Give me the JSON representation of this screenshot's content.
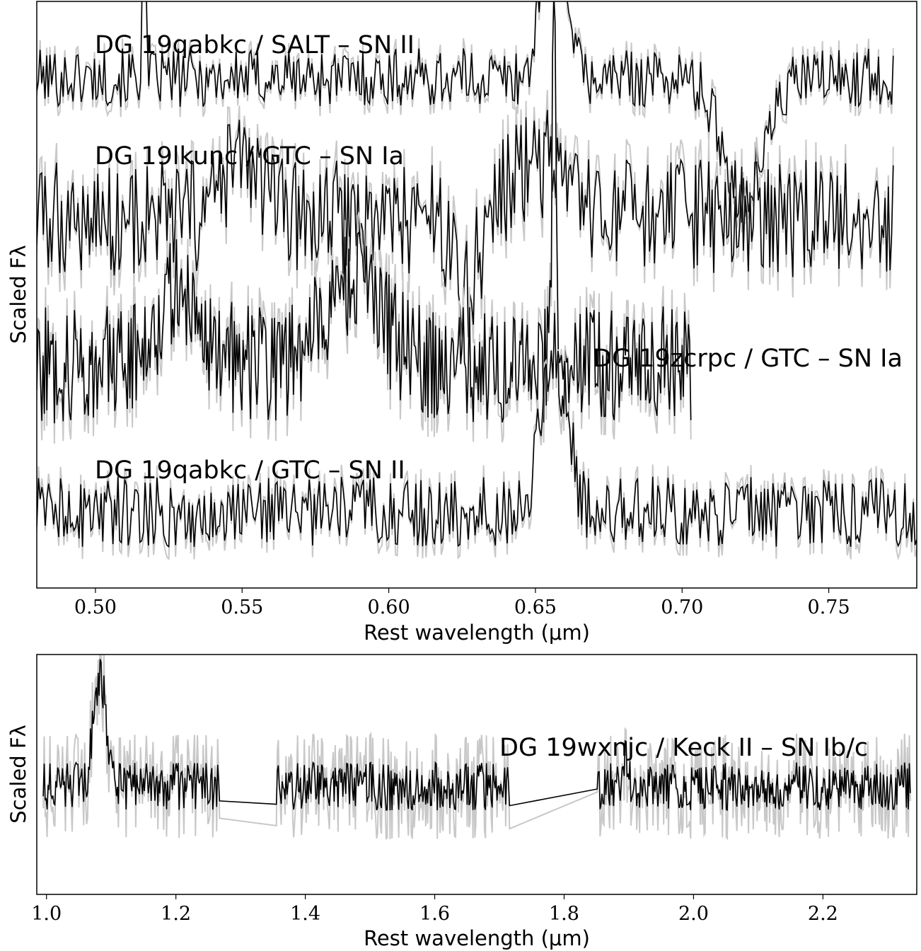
{
  "chart_data": [
    {
      "type": "line",
      "xlabel": "Rest wavelength (μm)",
      "ylabel": "Scaled Fλ",
      "xlim": [
        0.48,
        0.78
      ],
      "xticks": [
        0.5,
        0.55,
        0.6,
        0.65,
        0.7,
        0.75
      ],
      "xtick_labels": [
        "0.50",
        "0.55",
        "0.60",
        "0.65",
        "0.70",
        "0.75"
      ],
      "y_ticks_shown": false,
      "series": [
        {
          "name": "DG 19qabkc / SALT – SN II",
          "x_range": [
            0.48,
            0.772
          ],
          "baseline": 0.87,
          "noise": 0.05,
          "features": [
            {
              "x": 0.5165,
              "amp": 0.35,
              "width": 0.0005
            },
            {
              "x": 0.6563,
              "amp": 0.42,
              "width": 0.0035
            },
            {
              "x": 0.721,
              "amp": -0.2,
              "width": 0.007
            }
          ]
        },
        {
          "name": "DG 19lkunc / GTC – SN Ia",
          "x_range": [
            0.48,
            0.772
          ],
          "baseline": 0.63,
          "noise": 0.1,
          "features": [
            {
              "x": 0.55,
              "amp": 0.1,
              "width": 0.006
            },
            {
              "x": 0.626,
              "amp": -0.12,
              "width": 0.004
            },
            {
              "x": 0.65,
              "amp": 0.1,
              "width": 0.008
            }
          ]
        },
        {
          "name": "DG 19zcrpc / GTC – SN Ia",
          "x_range": [
            0.48,
            0.703
          ],
          "baseline": 0.38,
          "noise": 0.1,
          "features": [
            {
              "x": 0.528,
              "amp": 0.12,
              "width": 0.008
            },
            {
              "x": 0.587,
              "amp": 0.14,
              "width": 0.01
            },
            {
              "x": 0.6563,
              "amp": 0.7,
              "width": 0.0006
            }
          ]
        },
        {
          "name": "DG 19qabkc / GTC – SN II",
          "x_range": [
            0.48,
            0.78
          ],
          "baseline": 0.13,
          "noise": 0.06,
          "features": [
            {
              "x": 0.6563,
              "amp": 0.28,
              "width": 0.0045
            }
          ]
        }
      ]
    },
    {
      "type": "line",
      "xlabel": "Rest wavelength (μm)",
      "ylabel": "Scaled Fλ",
      "xlim": [
        0.985,
        2.345
      ],
      "xticks": [
        1.0,
        1.2,
        1.4,
        1.6,
        1.8,
        2.0,
        2.2
      ],
      "xtick_labels": [
        "1.0",
        "1.2",
        "1.4",
        "1.6",
        "1.8",
        "2.0",
        "2.2"
      ],
      "y_ticks_shown": false,
      "series": [
        {
          "name": "DG 19wxnjc / Keck II – SN Ib/c",
          "x_range": [
            0.995,
            2.335
          ],
          "gaps": [
            [
              1.268,
              1.355
            ],
            [
              1.716,
              1.85
            ]
          ],
          "baseline": 0.45,
          "noise": 0.1,
          "features": [
            {
              "x": 1.083,
              "amp": 0.45,
              "width": 0.01
            },
            {
              "x": 1.895,
              "amp": 0.15,
              "width": 0.004
            }
          ]
        }
      ]
    }
  ]
}
